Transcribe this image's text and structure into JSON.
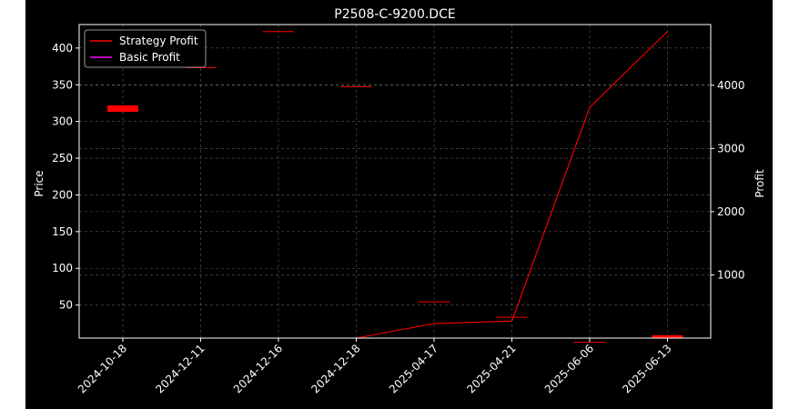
{
  "chart_data": {
    "type": "candlestick_with_line",
    "title": "P2508-C-9200.DCE",
    "ylabel_left": "Price",
    "ylabel_right": "Profit",
    "categories": [
      "2024-10-18",
      "2024-12-11",
      "2024-12-16",
      "2024-12-18",
      "2025-04-17",
      "2025-04-21",
      "2025-06-06",
      "2025-06-13"
    ],
    "ylim_left": [
      5,
      432
    ],
    "yticks_left": [
      50,
      100,
      150,
      200,
      250,
      300,
      350,
      400
    ],
    "ylim_right": [
      0,
      4960
    ],
    "yticks_right": [
      1000,
      2000,
      3000,
      4000
    ],
    "grid": true,
    "legend_position": "top-left",
    "candles": [
      {
        "date": "2024-10-18",
        "open": 322,
        "close": 313
      },
      {
        "date": "2024-12-11",
        "open": 374,
        "close": 373
      },
      {
        "date": "2024-12-16",
        "open": 423,
        "close": 422
      },
      {
        "date": "2024-12-18",
        "open": 348,
        "close": 347
      },
      {
        "date": "2025-04-17",
        "open": 55,
        "close": 54
      },
      {
        "date": "2025-04-21",
        "open": 34,
        "close": 33
      },
      {
        "date": "2025-06-06",
        "open": 0,
        "close": 0
      },
      {
        "date": "2025-06-13",
        "open": 9,
        "close": 5
      }
    ],
    "series": [
      {
        "name": "Strategy Profit",
        "color": "#ff0000",
        "values": [
          0,
          0,
          0,
          0,
          230,
          270,
          3650,
          4850
        ]
      },
      {
        "name": "Basic Profit",
        "color": "#ff00ff",
        "values": [
          0,
          0,
          0,
          0,
          0,
          0,
          0,
          0
        ]
      }
    ],
    "candle_color": "#ff0000",
    "grid_color": "#808080"
  }
}
